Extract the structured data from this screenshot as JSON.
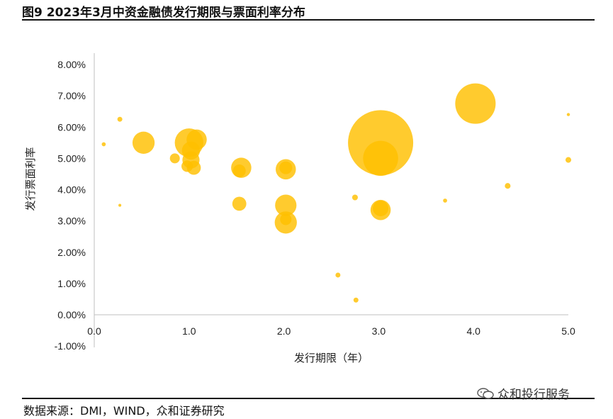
{
  "title": "图9 2023年3月中资金融债发行期限与票面利率分布",
  "source": "数据来源：DMI，WIND，众和证券研究",
  "watermark": {
    "text": "众和投行服务",
    "icon": "chat-bubbles-icon"
  },
  "colors": {
    "bubble": "#FFC000",
    "axis": "#BFBFBF",
    "text": "#222222"
  },
  "chart_data": {
    "type": "scatter",
    "variant": "bubble",
    "xlabel": "发行期限（年）",
    "ylabel": "发行票面利率",
    "xlim": [
      0,
      5
    ],
    "ylim": [
      -1,
      8.5
    ],
    "x_ticks": [
      "0.0",
      "1.0",
      "2.0",
      "3.0",
      "4.0",
      "5.0"
    ],
    "y_ticks": [
      "-1.00%",
      "0.00%",
      "1.00%",
      "2.00%",
      "3.00%",
      "4.00%",
      "5.00%",
      "6.00%",
      "7.00%",
      "8.00%"
    ],
    "grid": false,
    "legend": "none",
    "points": [
      {
        "x": 0.1,
        "y": 5.45,
        "size": 1
      },
      {
        "x": 0.27,
        "y": 6.25,
        "size": 1.5
      },
      {
        "x": 0.27,
        "y": 3.5,
        "size": 0.5
      },
      {
        "x": 0.52,
        "y": 5.5,
        "size": 30
      },
      {
        "x": 0.85,
        "y": 5.0,
        "size": 6
      },
      {
        "x": 1.0,
        "y": 5.5,
        "size": 50
      },
      {
        "x": 1.02,
        "y": 5.25,
        "size": 20
      },
      {
        "x": 1.08,
        "y": 5.6,
        "size": 25
      },
      {
        "x": 0.98,
        "y": 4.75,
        "size": 8
      },
      {
        "x": 1.02,
        "y": 4.95,
        "size": 18
      },
      {
        "x": 1.05,
        "y": 4.7,
        "size": 12
      },
      {
        "x": 1.55,
        "y": 4.7,
        "size": 25
      },
      {
        "x": 1.53,
        "y": 4.6,
        "size": 10
      },
      {
        "x": 1.53,
        "y": 3.55,
        "size": 12
      },
      {
        "x": 2.02,
        "y": 4.65,
        "size": 25
      },
      {
        "x": 2.02,
        "y": 4.7,
        "size": 10
      },
      {
        "x": 2.02,
        "y": 3.5,
        "size": 28
      },
      {
        "x": 2.02,
        "y": 2.95,
        "size": 30
      },
      {
        "x": 2.02,
        "y": 3.05,
        "size": 8
      },
      {
        "x": 2.57,
        "y": 1.27,
        "size": 1.5
      },
      {
        "x": 2.75,
        "y": 3.75,
        "size": 2
      },
      {
        "x": 2.76,
        "y": 0.47,
        "size": 1.5
      },
      {
        "x": 3.02,
        "y": 5.5,
        "size": 260
      },
      {
        "x": 3.02,
        "y": 5.0,
        "size": 75
      },
      {
        "x": 3.02,
        "y": 3.35,
        "size": 25
      },
      {
        "x": 3.02,
        "y": 3.4,
        "size": 15
      },
      {
        "x": 3.7,
        "y": 3.65,
        "size": 1
      },
      {
        "x": 4.02,
        "y": 6.75,
        "size": 100
      },
      {
        "x": 4.36,
        "y": 4.12,
        "size": 2
      },
      {
        "x": 5.0,
        "y": 6.4,
        "size": 0.6
      },
      {
        "x": 5.0,
        "y": 4.95,
        "size": 2
      }
    ]
  }
}
